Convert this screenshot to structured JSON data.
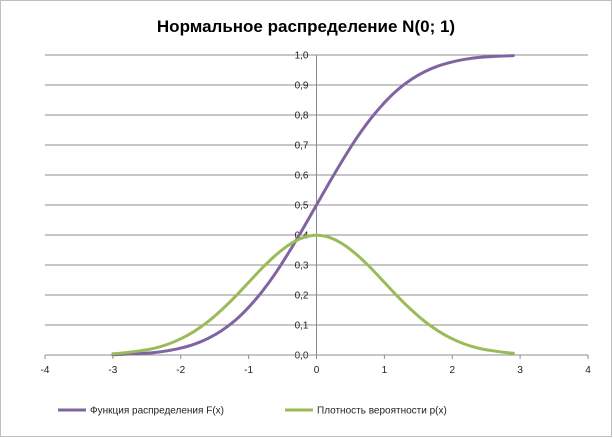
{
  "chart_data": {
    "type": "line",
    "title": "Нормальное  распределение N(0; 1)",
    "xlabel": "",
    "ylabel": "",
    "xlim": [
      -4,
      4
    ],
    "ylim": [
      0,
      1.0
    ],
    "x_ticks": [
      "-4",
      "-3",
      "-2",
      "-1",
      "0",
      "1",
      "2",
      "3",
      "4"
    ],
    "y_ticks": [
      "0,0",
      "0,1",
      "0,2",
      "0,3",
      "0,4",
      "0,5",
      "0,6",
      "0,7",
      "0,8",
      "0,9",
      "1,0"
    ],
    "grid": "horizontal",
    "legend_position": "bottom",
    "series": [
      {
        "name": "Функция распределения F(x)",
        "color": "#8064a2",
        "x": [
          -3.0,
          -2.8,
          -2.6,
          -2.4,
          -2.2,
          -2.0,
          -1.8,
          -1.6,
          -1.4,
          -1.2,
          -1.0,
          -0.8,
          -0.6,
          -0.4,
          -0.2,
          0.0,
          0.2,
          0.4,
          0.6,
          0.8,
          1.0,
          1.2,
          1.4,
          1.6,
          1.8,
          2.0,
          2.2,
          2.4,
          2.6,
          2.8,
          2.9
        ],
        "y": [
          0.001,
          0.003,
          0.005,
          0.008,
          0.014,
          0.023,
          0.036,
          0.055,
          0.081,
          0.115,
          0.159,
          0.212,
          0.274,
          0.345,
          0.421,
          0.5,
          0.579,
          0.655,
          0.726,
          0.788,
          0.841,
          0.885,
          0.919,
          0.945,
          0.964,
          0.977,
          0.986,
          0.992,
          0.995,
          0.997,
          0.998
        ]
      },
      {
        "name": "Плотность вероятности p(x)",
        "color": "#9bbb59",
        "x": [
          -3.0,
          -2.8,
          -2.6,
          -2.4,
          -2.2,
          -2.0,
          -1.8,
          -1.6,
          -1.4,
          -1.2,
          -1.0,
          -0.8,
          -0.6,
          -0.4,
          -0.2,
          0.0,
          0.2,
          0.4,
          0.6,
          0.8,
          1.0,
          1.2,
          1.4,
          1.6,
          1.8,
          2.0,
          2.2,
          2.4,
          2.6,
          2.8,
          2.9
        ],
        "y": [
          0.004,
          0.008,
          0.014,
          0.022,
          0.035,
          0.054,
          0.079,
          0.111,
          0.15,
          0.194,
          0.242,
          0.29,
          0.333,
          0.368,
          0.391,
          0.399,
          0.391,
          0.368,
          0.333,
          0.29,
          0.242,
          0.194,
          0.15,
          0.111,
          0.079,
          0.054,
          0.035,
          0.022,
          0.014,
          0.008,
          0.006
        ]
      }
    ]
  }
}
